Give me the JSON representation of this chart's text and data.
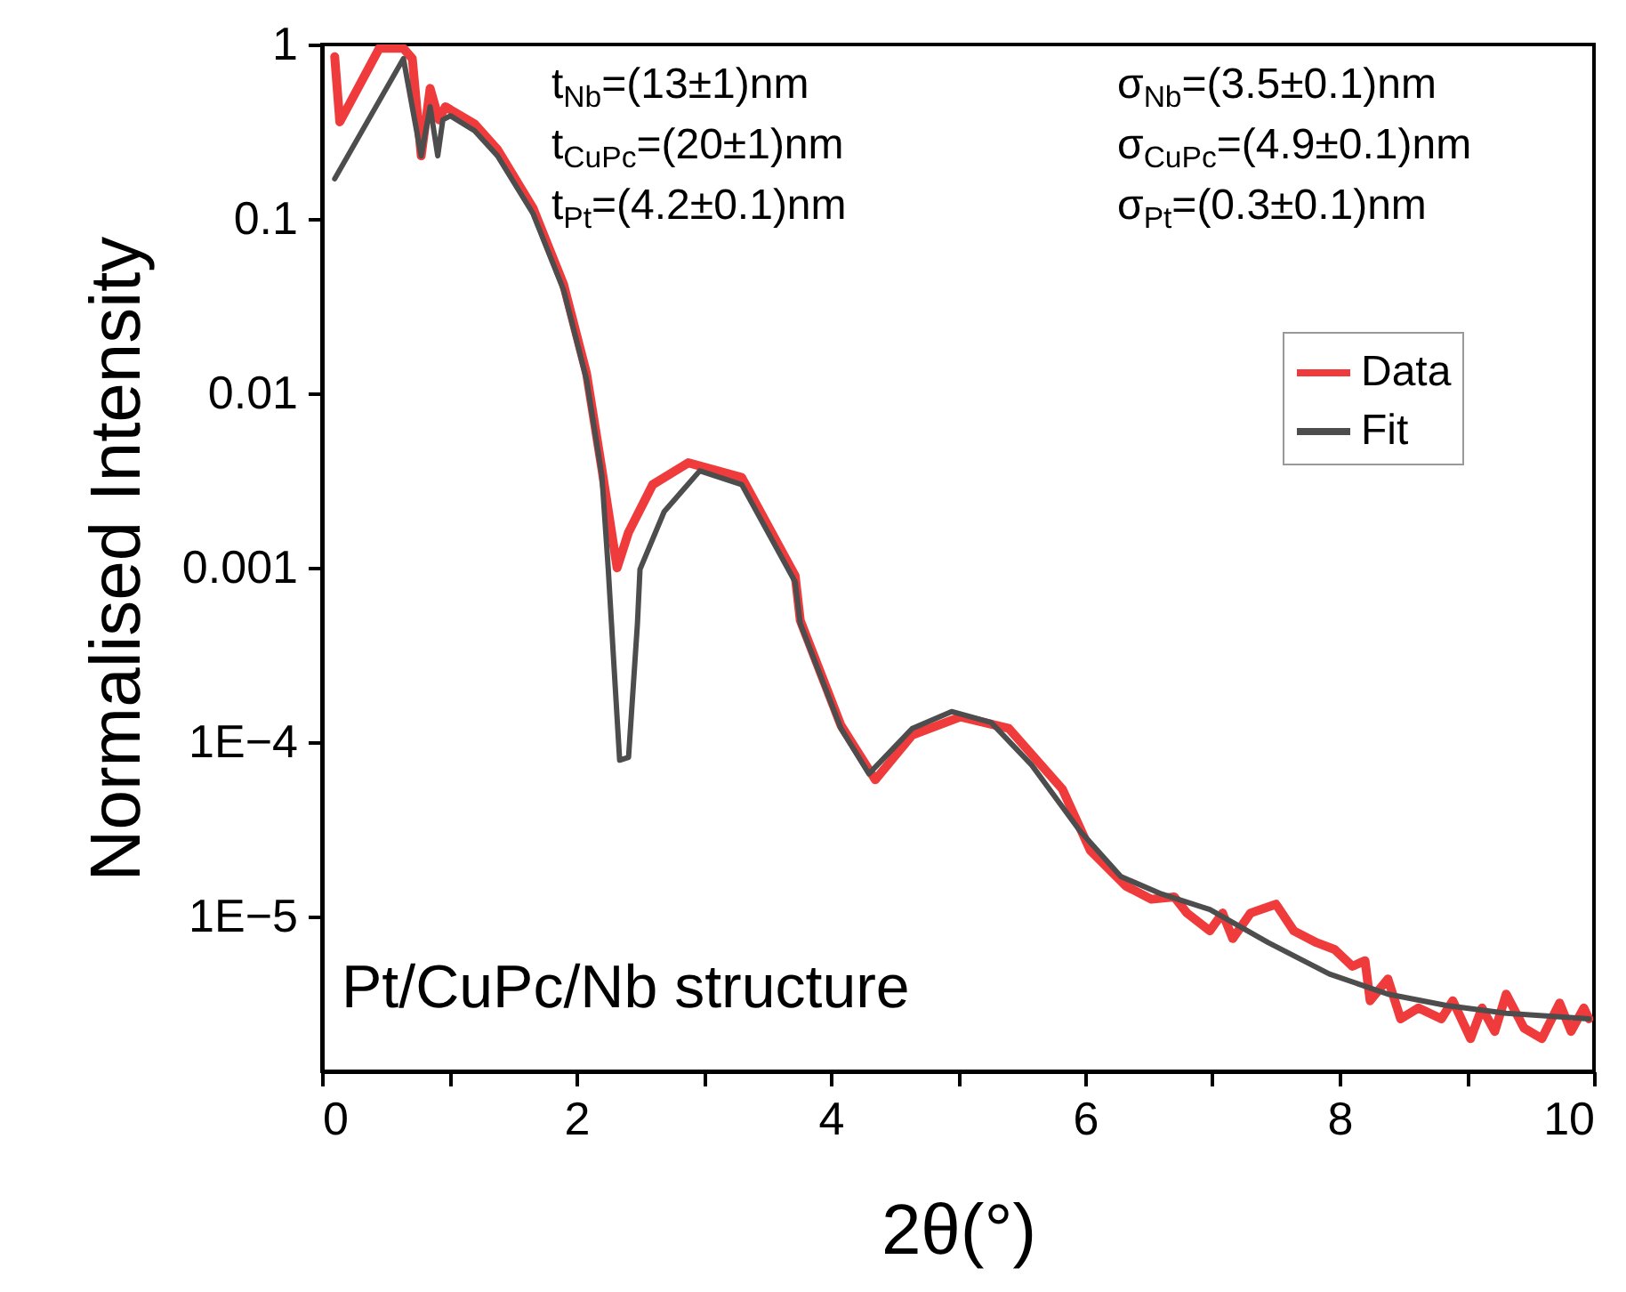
{
  "chart_data": {
    "type": "line",
    "xlabel": "2θ(°)",
    "ylabel": "Normalised Intensity",
    "log": "y",
    "xlim": [
      0,
      10
    ],
    "xticks": [
      0,
      {
        "value": 1,
        "label": null
      },
      2,
      {
        "value": 3,
        "label": null
      },
      4,
      {
        "value": 5,
        "label": null
      },
      6,
      {
        "value": 7,
        "label": null
      },
      8,
      {
        "value": 9,
        "label": null
      },
      10
    ],
    "ylim": [
      1.3e-06,
      1
    ],
    "yticks": [
      1,
      0.1,
      0.01,
      0.001,
      {
        "value": 0.0001,
        "label": "1E−4"
      },
      {
        "value": 1e-05,
        "label": "1E−5"
      }
    ],
    "legend": "top right",
    "grid": false,
    "line_style": "solid",
    "marker": "none",
    "annotations": [
      "t$_{Nb}$=(13±1)nm",
      "t$_{CuPc}$=(20±1)nm",
      "t$_{Pt}$=(4.2±0.1)nm",
      "σ$_{Nb}$=(3.5±0.1)nm",
      "σ$_{CuPc}$=(4.9±0.1)nm",
      "σ$_{Pt}$=(0.3±0.1)nm",
      "Pt/CuPc/Nb structure"
    ],
    "series": [
      {
        "name": "Data",
        "color": "#ef3b3b",
        "x": [
          0.1,
          0.14,
          0.45,
          0.64,
          0.71,
          0.78,
          0.85,
          0.92,
          0.97,
          1.2,
          1.38,
          1.66,
          1.9,
          2.08,
          2.2,
          2.32,
          2.41,
          2.6,
          2.88,
          3.3,
          3.72,
          3.76,
          4.08,
          4.35,
          4.64,
          5.02,
          5.4,
          5.82,
          6.04,
          6.32,
          6.52,
          6.7,
          6.8,
          6.98,
          7.08,
          7.16,
          7.3,
          7.5,
          7.64,
          7.82,
          7.96,
          8.1,
          8.2,
          8.24,
          8.38,
          8.48,
          8.62,
          8.8,
          8.89,
          9.03,
          9.12,
          9.22,
          9.31,
          9.45,
          9.59,
          9.73,
          9.82,
          9.92,
          9.96
        ],
        "values": [
          0.85,
          0.36,
          0.95,
          0.95,
          0.83,
          0.23,
          0.56,
          0.37,
          0.44,
          0.35,
          0.25,
          0.115,
          0.042,
          0.013,
          0.0037,
          0.001,
          0.0016,
          0.003,
          0.004,
          0.0033,
          0.0009,
          0.0005,
          0.000125,
          6.1e-05,
          0.00011,
          0.00014,
          0.00012,
          5.4e-05,
          2.4e-05,
          1.5e-05,
          1.26e-05,
          1.3e-05,
          1.05e-05,
          8.3e-06,
          1.05e-05,
          7.5e-06,
          1.05e-05,
          1.18e-05,
          8.3e-06,
          7.1e-06,
          6.5e-06,
          5.2e-06,
          5.6e-06,
          3.3e-06,
          4.4e-06,
          2.6e-06,
          3e-06,
          2.6e-06,
          3.3e-06,
          2e-06,
          3e-06,
          2.2e-06,
          3.6e-06,
          2.3e-06,
          2e-06,
          3.2e-06,
          2.2e-06,
          3e-06,
          2.6e-06
        ]
      },
      {
        "name": "Fit",
        "color": "#4d4d4d",
        "x": [
          0.1,
          0.64,
          0.78,
          0.85,
          0.91,
          0.95,
          1.01,
          1.2,
          1.38,
          1.66,
          1.9,
          2.08,
          2.2,
          2.25,
          2.29,
          2.34,
          2.41,
          2.48,
          2.5,
          2.69,
          2.97,
          3.3,
          3.72,
          3.76,
          4.08,
          4.3,
          4.64,
          4.95,
          5.26,
          5.58,
          5.96,
          6.28,
          6.6,
          6.98,
          7.44,
          7.92,
          8.38,
          8.84,
          9.31,
          9.96
        ],
        "values": [
          0.17,
          0.83,
          0.23,
          0.44,
          0.23,
          0.37,
          0.39,
          0.32,
          0.23,
          0.107,
          0.039,
          0.012,
          0.0034,
          0.001,
          0.00032,
          7.9e-05,
          8.2e-05,
          0.00048,
          0.00098,
          0.0021,
          0.0036,
          0.003,
          0.00083,
          0.00048,
          0.00012,
          6.6e-05,
          0.00012,
          0.00015,
          0.00013,
          7.4e-05,
          3.1e-05,
          1.7e-05,
          1.35e-05,
          1.1e-05,
          7.1e-06,
          4.7e-06,
          3.6e-06,
          3.1e-06,
          2.8e-06,
          2.6e-06
        ]
      }
    ]
  }
}
